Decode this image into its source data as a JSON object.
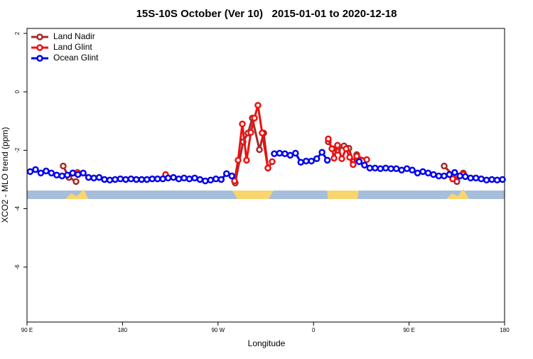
{
  "chart_data": {
    "type": "line",
    "title": "15S-10S October (Ver 10)   2015-01-01 to 2020-12-18",
    "xlabel": "Longitude",
    "ylabel": "XCO2 - MLO trend (ppm)",
    "xlim": [
      90,
      540
    ],
    "xticks": [
      {
        "value": 90,
        "label": "90 E"
      },
      180,
      {
        "value": 270,
        "label": "90 W"
      },
      {
        "value": 360,
        "label": "0"
      },
      {
        "value": 450,
        "label": "90 E"
      },
      {
        "value": 540,
        "label": "180"
      }
    ],
    "ylim": [
      -7.88,
      2.17
    ],
    "yticks": [
      2,
      0,
      -2,
      -4,
      -6
    ],
    "legend": "top-left",
    "series": [
      {
        "name": "Land Nadir",
        "color": "#a52a2a",
        "x": [
          124.1,
          129.5,
          136.2,
          200,
          286.2,
          293.6,
          298.3,
          302.3,
          309.0,
          313.0,
          317.0,
          340,
          373.9,
          377.9,
          382.6,
          388.7,
          393.3,
          397.3,
          400.7,
          440,
          483.1,
          491.1,
          495.1,
          501.1
        ],
        "values": [
          -2.54,
          -2.93,
          -3.07,
          null,
          -3.12,
          -1.71,
          -1.41,
          -0.9,
          -1.98,
          -1.41,
          -2.61,
          null,
          -1.71,
          -1.95,
          -2.0,
          -1.85,
          -1.93,
          -2.39,
          -2.15,
          null,
          -2.54,
          -2.85,
          -3.07,
          -2.78
        ]
      },
      {
        "name": "Land Glint",
        "color": "#ee1111",
        "x": [
          133.5,
          137.5,
          180,
          220.6,
          250,
          285.5,
          288.9,
          292.9,
          296.9,
          300.9,
          304.3,
          307.6,
          311.6,
          317.0,
          321.0,
          345,
          373.9,
          377.3,
          379.3,
          382.6,
          386.6,
          390.7,
          394.0,
          397.3,
          400.7,
          410.1,
          450,
          491.1,
          501.1
        ],
        "values": [
          -2.78,
          -2.76,
          null,
          -2.83,
          null,
          -3.05,
          -2.34,
          -1.1,
          -2.34,
          -1.39,
          -0.9,
          -0.46,
          -1.41,
          -2.61,
          -2.39,
          null,
          -1.61,
          -1.95,
          -2.27,
          -1.83,
          -2.29,
          -1.95,
          -2.24,
          -2.49,
          -2.2,
          -2.32,
          null,
          -2.98,
          -2.83
        ]
      },
      {
        "name": "Ocean Glint",
        "color": "#0000ee",
        "x": [
          93,
          98,
          103,
          108,
          113,
          118,
          123,
          128,
          133,
          138,
          143,
          148,
          153,
          158,
          163,
          168,
          173,
          178,
          183,
          188,
          193,
          198,
          203,
          208,
          213,
          218,
          223,
          228,
          233,
          238,
          243,
          248,
          253,
          258,
          263,
          268,
          273,
          278,
          283,
          303,
          323,
          328,
          333,
          338,
          343,
          348,
          353,
          358,
          363,
          368,
          373,
          388,
          403,
          408,
          413,
          418,
          423,
          428,
          433,
          438,
          443,
          448,
          453,
          458,
          463,
          468,
          473,
          478,
          483,
          488,
          493,
          498,
          503,
          508,
          513,
          518,
          523,
          528,
          533,
          538
        ],
        "values": [
          -2.73,
          -2.66,
          -2.78,
          -2.71,
          -2.78,
          -2.85,
          -2.88,
          -2.85,
          -2.78,
          -2.83,
          -2.78,
          -2.93,
          -2.95,
          -2.93,
          -3.0,
          -3.02,
          -3.0,
          -2.98,
          -3.0,
          -2.98,
          -3.0,
          -3.0,
          -3.0,
          -2.98,
          -2.98,
          -2.98,
          -2.95,
          -2.93,
          -2.98,
          -2.95,
          -2.98,
          -2.95,
          -3.0,
          -3.05,
          -3.02,
          -2.98,
          -3.0,
          -2.8,
          -2.88,
          null,
          -2.12,
          -2.1,
          -2.12,
          -2.17,
          -2.1,
          -2.41,
          -2.37,
          -2.37,
          -2.29,
          -2.07,
          -2.34,
          null,
          -2.39,
          -2.51,
          -2.61,
          -2.61,
          -2.63,
          -2.61,
          -2.63,
          -2.63,
          -2.68,
          -2.63,
          -2.68,
          -2.78,
          -2.73,
          -2.78,
          -2.83,
          -2.88,
          -2.88,
          -2.83,
          -2.76,
          -2.88,
          -2.9,
          -2.95,
          -2.95,
          -2.98,
          -3.02,
          -3.0,
          -3.02,
          -3.0
        ]
      }
    ]
  }
}
